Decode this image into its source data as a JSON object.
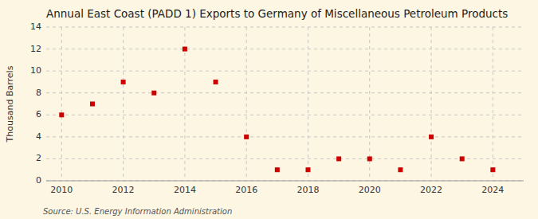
{
  "chart_data": {
    "type": "scatter",
    "title": "Annual East Coast (PADD 1) Exports to Germany of Miscellaneous Petroleum Products",
    "ylabel": "Thousand Barrels",
    "annotations": [
      "Source: U.S. Energy Information Administration"
    ],
    "x": [
      2010,
      2011,
      2012,
      2013,
      2014,
      2015,
      2016,
      2017,
      2018,
      2019,
      2020,
      2021,
      2022,
      2023,
      2024
    ],
    "values": [
      6,
      7,
      9,
      8,
      12,
      9,
      4,
      1,
      1,
      2,
      2,
      1,
      4,
      2,
      1
    ],
    "color": "#cc0000",
    "marker": "square",
    "xlim": [
      2009.5,
      2025
    ],
    "ylim": [
      0,
      14
    ],
    "xticks": [
      2010,
      2012,
      2014,
      2016,
      2018,
      2020,
      2022,
      2024
    ],
    "yticks": [
      0,
      2,
      4,
      6,
      8,
      10,
      12,
      14
    ],
    "grid": true
  }
}
